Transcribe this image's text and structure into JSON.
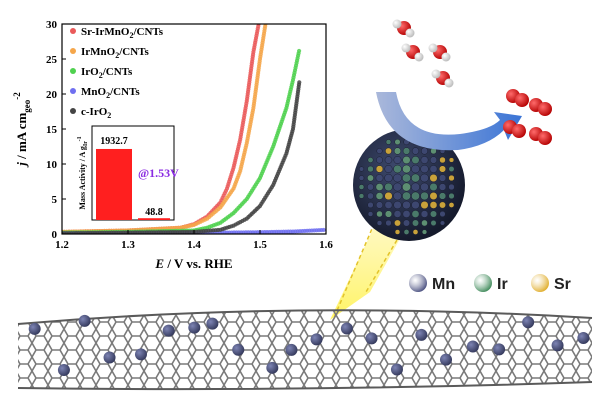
{
  "chart_data": {
    "type": "line",
    "xlabel_var": "E",
    "xlabel_rest": " / V vs. RHE",
    "ylabel_var": "j",
    "ylabel_unit": " / mA cm",
    "ylabel_sub": "geo",
    "ylabel_sup": "-2",
    "xlim": [
      1.2,
      1.6
    ],
    "ylim": [
      0,
      30
    ],
    "x_ticks": [
      "1.2",
      "1.3",
      "1.4",
      "1.5",
      "1.6"
    ],
    "y_ticks": [
      "0",
      "5",
      "10",
      "15",
      "20",
      "25",
      "30"
    ],
    "legend_position": "top-left",
    "series": [
      {
        "label_pre": "Sr-IrMnO",
        "label_sub": "2",
        "label_post": "/CNTs",
        "color": "#ea5a5a",
        "x": [
          1.2,
          1.3,
          1.38,
          1.4,
          1.42,
          1.44,
          1.45,
          1.46,
          1.47,
          1.48,
          1.49,
          1.5
        ],
        "y": [
          0.3,
          0.5,
          0.9,
          1.4,
          2.5,
          4.5,
          6.5,
          9.5,
          13.5,
          19,
          26,
          31
        ]
      },
      {
        "label_pre": "IrMnO",
        "label_sub": "2",
        "label_post": "/CNTs",
        "color": "#f5a64a",
        "x": [
          1.2,
          1.3,
          1.38,
          1.4,
          1.42,
          1.44,
          1.46,
          1.47,
          1.48,
          1.49,
          1.5,
          1.51
        ],
        "y": [
          0.3,
          0.5,
          0.9,
          1.3,
          2.2,
          3.8,
          6.5,
          9,
          13,
          18,
          25,
          31
        ]
      },
      {
        "label_pre": "IrO",
        "label_sub": "2",
        "label_post": "/CNTs",
        "color": "#4fd14f",
        "x": [
          1.2,
          1.3,
          1.4,
          1.42,
          1.44,
          1.46,
          1.48,
          1.5,
          1.52,
          1.54,
          1.55,
          1.56
        ],
        "y": [
          0.2,
          0.3,
          0.5,
          0.9,
          1.6,
          3,
          5,
          8,
          12.5,
          18,
          22,
          26.5
        ]
      },
      {
        "label_pre": "MnO",
        "label_sub": "2",
        "label_post": "/CNTs",
        "color": "#6f6ff0",
        "x": [
          1.2,
          1.3,
          1.4,
          1.5,
          1.55,
          1.6
        ],
        "y": [
          0.1,
          0.1,
          0.15,
          0.25,
          0.35,
          0.6
        ]
      },
      {
        "label_pre": "c-IrO",
        "label_sub": "2",
        "label_post": "",
        "color": "#444444",
        "x": [
          1.2,
          1.3,
          1.4,
          1.44,
          1.46,
          1.48,
          1.5,
          1.52,
          1.54,
          1.55,
          1.56
        ],
        "y": [
          0.1,
          0.2,
          0.3,
          0.6,
          1.2,
          2.2,
          4,
          7,
          11.5,
          15,
          22
        ]
      }
    ]
  },
  "inset": {
    "ylabel_main": "Mass Activity / A g",
    "ylabel_sub": "Ir",
    "ylabel_sup": "-1",
    "annotation": "@1.53V",
    "bars": [
      {
        "value": 1932.7,
        "label": "1932.7",
        "color": "#ff1f1f"
      },
      {
        "value": 48.8,
        "label": "48.8",
        "color": "#ff1f1f"
      }
    ]
  },
  "legend_elements": [
    {
      "symbol": "Mn",
      "color": "#4a5080"
    },
    {
      "symbol": "Ir",
      "color": "#3f8a5a"
    },
    {
      "symbol": "Sr",
      "color": "#e0ad2a"
    }
  ]
}
